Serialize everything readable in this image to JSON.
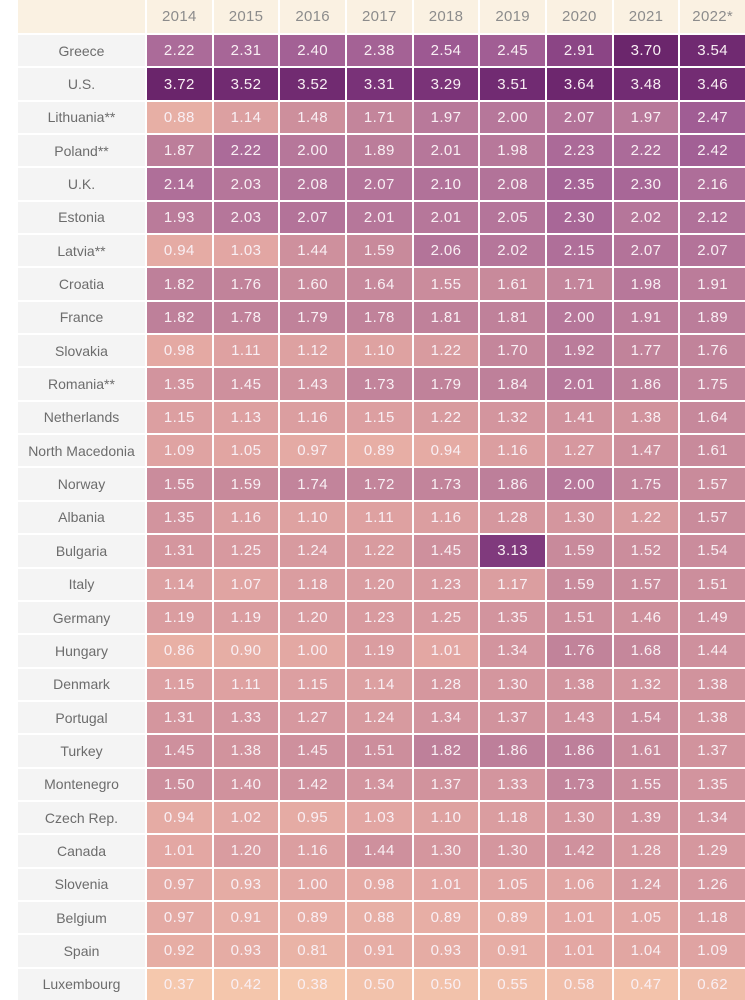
{
  "chart_data": {
    "type": "heatmap",
    "title": "",
    "corner_label": "",
    "columns": [
      "2014",
      "2015",
      "2016",
      "2017",
      "2018",
      "2019",
      "2020",
      "2021",
      "2022*"
    ],
    "rows": [
      {
        "label": "Greece",
        "values": [
          "2.22",
          "2.31",
          "2.40",
          "2.38",
          "2.54",
          "2.45",
          "2.91",
          "3.70",
          "3.54"
        ]
      },
      {
        "label": "U.S.",
        "values": [
          "3.72",
          "3.52",
          "3.52",
          "3.31",
          "3.29",
          "3.51",
          "3.64",
          "3.48",
          "3.46"
        ]
      },
      {
        "label": "Lithuania**",
        "values": [
          "0.88",
          "1.14",
          "1.48",
          "1.71",
          "1.97",
          "2.00",
          "2.07",
          "1.97",
          "2.47"
        ]
      },
      {
        "label": "Poland**",
        "values": [
          "1.87",
          "2.22",
          "2.00",
          "1.89",
          "2.01",
          "1.98",
          "2.23",
          "2.22",
          "2.42"
        ]
      },
      {
        "label": "U.K.",
        "values": [
          "2.14",
          "2.03",
          "2.08",
          "2.07",
          "2.10",
          "2.08",
          "2.35",
          "2.30",
          "2.16"
        ]
      },
      {
        "label": "Estonia",
        "values": [
          "1.93",
          "2.03",
          "2.07",
          "2.01",
          "2.01",
          "2.05",
          "2.30",
          "2.02",
          "2.12"
        ]
      },
      {
        "label": "Latvia**",
        "values": [
          "0.94",
          "1.03",
          "1.44",
          "1.59",
          "2.06",
          "2.02",
          "2.15",
          "2.07",
          "2.07"
        ]
      },
      {
        "label": "Croatia",
        "values": [
          "1.82",
          "1.76",
          "1.60",
          "1.64",
          "1.55",
          "1.61",
          "1.71",
          "1.98",
          "1.91"
        ]
      },
      {
        "label": "France",
        "values": [
          "1.82",
          "1.78",
          "1.79",
          "1.78",
          "1.81",
          "1.81",
          "2.00",
          "1.91",
          "1.89"
        ]
      },
      {
        "label": "Slovakia",
        "values": [
          "0.98",
          "1.11",
          "1.12",
          "1.10",
          "1.22",
          "1.70",
          "1.92",
          "1.77",
          "1.76"
        ]
      },
      {
        "label": "Romania**",
        "values": [
          "1.35",
          "1.45",
          "1.43",
          "1.73",
          "1.79",
          "1.84",
          "2.01",
          "1.86",
          "1.75"
        ]
      },
      {
        "label": "Netherlands",
        "values": [
          "1.15",
          "1.13",
          "1.16",
          "1.15",
          "1.22",
          "1.32",
          "1.41",
          "1.38",
          "1.64"
        ]
      },
      {
        "label": "North Macedonia",
        "values": [
          "1.09",
          "1.05",
          "0.97",
          "0.89",
          "0.94",
          "1.16",
          "1.27",
          "1.47",
          "1.61"
        ]
      },
      {
        "label": "Norway",
        "values": [
          "1.55",
          "1.59",
          "1.74",
          "1.72",
          "1.73",
          "1.86",
          "2.00",
          "1.75",
          "1.57"
        ]
      },
      {
        "label": "Albania",
        "values": [
          "1.35",
          "1.16",
          "1.10",
          "1.11",
          "1.16",
          "1.28",
          "1.30",
          "1.22",
          "1.57"
        ]
      },
      {
        "label": "Bulgaria",
        "values": [
          "1.31",
          "1.25",
          "1.24",
          "1.22",
          "1.45",
          "3.13",
          "1.59",
          "1.52",
          "1.54"
        ]
      },
      {
        "label": "Italy",
        "values": [
          "1.14",
          "1.07",
          "1.18",
          "1.20",
          "1.23",
          "1.17",
          "1.59",
          "1.57",
          "1.51"
        ]
      },
      {
        "label": "Germany",
        "values": [
          "1.19",
          "1.19",
          "1.20",
          "1.23",
          "1.25",
          "1.35",
          "1.51",
          "1.46",
          "1.49"
        ]
      },
      {
        "label": "Hungary",
        "values": [
          "0.86",
          "0.90",
          "1.00",
          "1.19",
          "1.01",
          "1.34",
          "1.76",
          "1.68",
          "1.44"
        ]
      },
      {
        "label": "Denmark",
        "values": [
          "1.15",
          "1.11",
          "1.15",
          "1.14",
          "1.28",
          "1.30",
          "1.38",
          "1.32",
          "1.38"
        ]
      },
      {
        "label": "Portugal",
        "values": [
          "1.31",
          "1.33",
          "1.27",
          "1.24",
          "1.34",
          "1.37",
          "1.43",
          "1.54",
          "1.38"
        ]
      },
      {
        "label": "Turkey",
        "values": [
          "1.45",
          "1.38",
          "1.45",
          "1.51",
          "1.82",
          "1.86",
          "1.86",
          "1.61",
          "1.37"
        ]
      },
      {
        "label": "Montenegro",
        "values": [
          "1.50",
          "1.40",
          "1.42",
          "1.34",
          "1.37",
          "1.33",
          "1.73",
          "1.55",
          "1.35"
        ]
      },
      {
        "label": "Czech Rep.",
        "values": [
          "0.94",
          "1.02",
          "0.95",
          "1.03",
          "1.10",
          "1.18",
          "1.30",
          "1.39",
          "1.34"
        ]
      },
      {
        "label": "Canada",
        "values": [
          "1.01",
          "1.20",
          "1.16",
          "1.44",
          "1.30",
          "1.30",
          "1.42",
          "1.28",
          "1.29"
        ]
      },
      {
        "label": "Slovenia",
        "values": [
          "0.97",
          "0.93",
          "1.00",
          "0.98",
          "1.01",
          "1.05",
          "1.06",
          "1.24",
          "1.26"
        ]
      },
      {
        "label": "Belgium",
        "values": [
          "0.97",
          "0.91",
          "0.89",
          "0.88",
          "0.89",
          "0.89",
          "1.01",
          "1.05",
          "1.18"
        ]
      },
      {
        "label": "Spain",
        "values": [
          "0.92",
          "0.93",
          "0.81",
          "0.91",
          "0.93",
          "0.91",
          "1.01",
          "1.04",
          "1.09"
        ]
      },
      {
        "label": "Luxembourg",
        "values": [
          "0.37",
          "0.42",
          "0.38",
          "0.50",
          "0.50",
          "0.55",
          "0.58",
          "0.47",
          "0.62"
        ]
      }
    ],
    "value_range": [
      0.37,
      3.72
    ],
    "grid": "2px white gaps between cells",
    "legend_position": "none",
    "colors": {
      "page_bg": "#ffffff",
      "header_bg": "#faf1e2",
      "header_text": "#8c8c8c",
      "label_bg": "#f4f4f4",
      "label_text": "#6c6c6c",
      "cell_text": "#f9eff4",
      "scale_stops": [
        {
          "value": 0.37,
          "hex": "#f5c8ad"
        },
        {
          "value": 0.7,
          "hex": "#edb9a8"
        },
        {
          "value": 1.0,
          "hex": "#e3a8a3"
        },
        {
          "value": 1.3,
          "hex": "#d4969e"
        },
        {
          "value": 1.6,
          "hex": "#c88a9b"
        },
        {
          "value": 1.9,
          "hex": "#bb7d9a"
        },
        {
          "value": 2.2,
          "hex": "#ac6c99"
        },
        {
          "value": 2.6,
          "hex": "#9a5691"
        },
        {
          "value": 3.0,
          "hex": "#864081"
        },
        {
          "value": 3.4,
          "hex": "#752e75"
        },
        {
          "value": 3.72,
          "hex": "#6a256b"
        }
      ]
    }
  }
}
